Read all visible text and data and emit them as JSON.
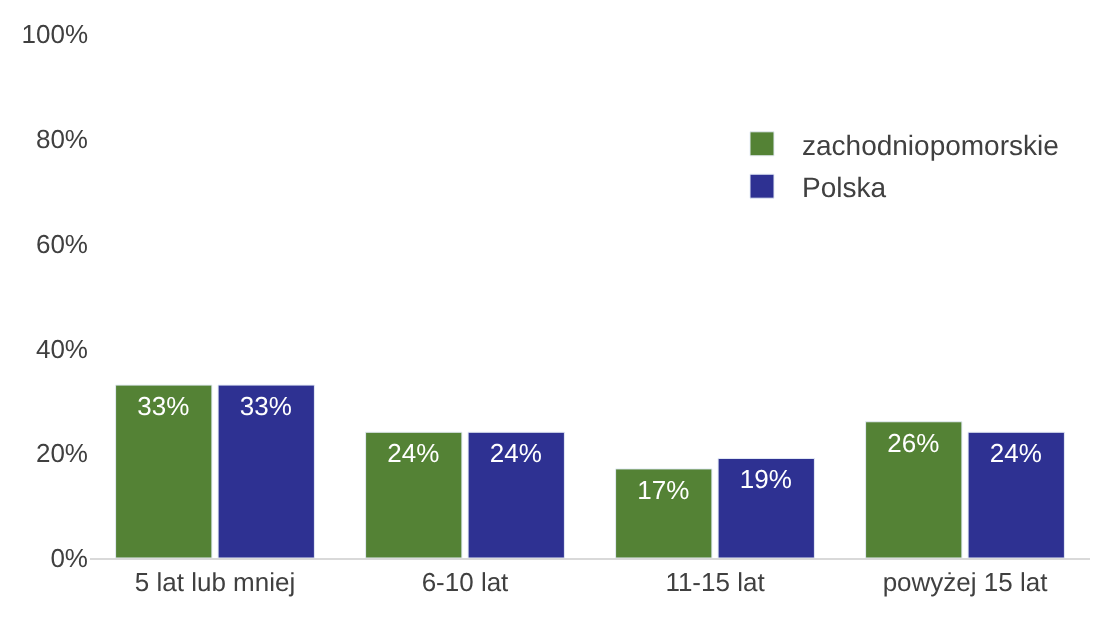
{
  "chart_data": {
    "type": "bar",
    "categories": [
      "5 lat lub mniej",
      "6-10 lat",
      "11-15 lat",
      "powyżej 15 lat"
    ],
    "series": [
      {
        "name": "zachodniopomorskie",
        "color": "#548235",
        "values": [
          33,
          24,
          17,
          26
        ],
        "value_labels": [
          "33%",
          "24%",
          "17%",
          "26%"
        ]
      },
      {
        "name": "Polska",
        "color": "#2e3192",
        "values": [
          33,
          24,
          19,
          24
        ],
        "value_labels": [
          "33%",
          "24%",
          "19%",
          "24%"
        ]
      }
    ],
    "ylim": [
      0,
      100
    ],
    "yticks": [
      {
        "value": 0,
        "label": "0%"
      },
      {
        "value": 20,
        "label": "20%"
      },
      {
        "value": 40,
        "label": "40%"
      },
      {
        "value": 60,
        "label": "60%"
      },
      {
        "value": 80,
        "label": "80%"
      },
      {
        "value": 100,
        "label": "100%"
      }
    ],
    "legend": "top right"
  }
}
